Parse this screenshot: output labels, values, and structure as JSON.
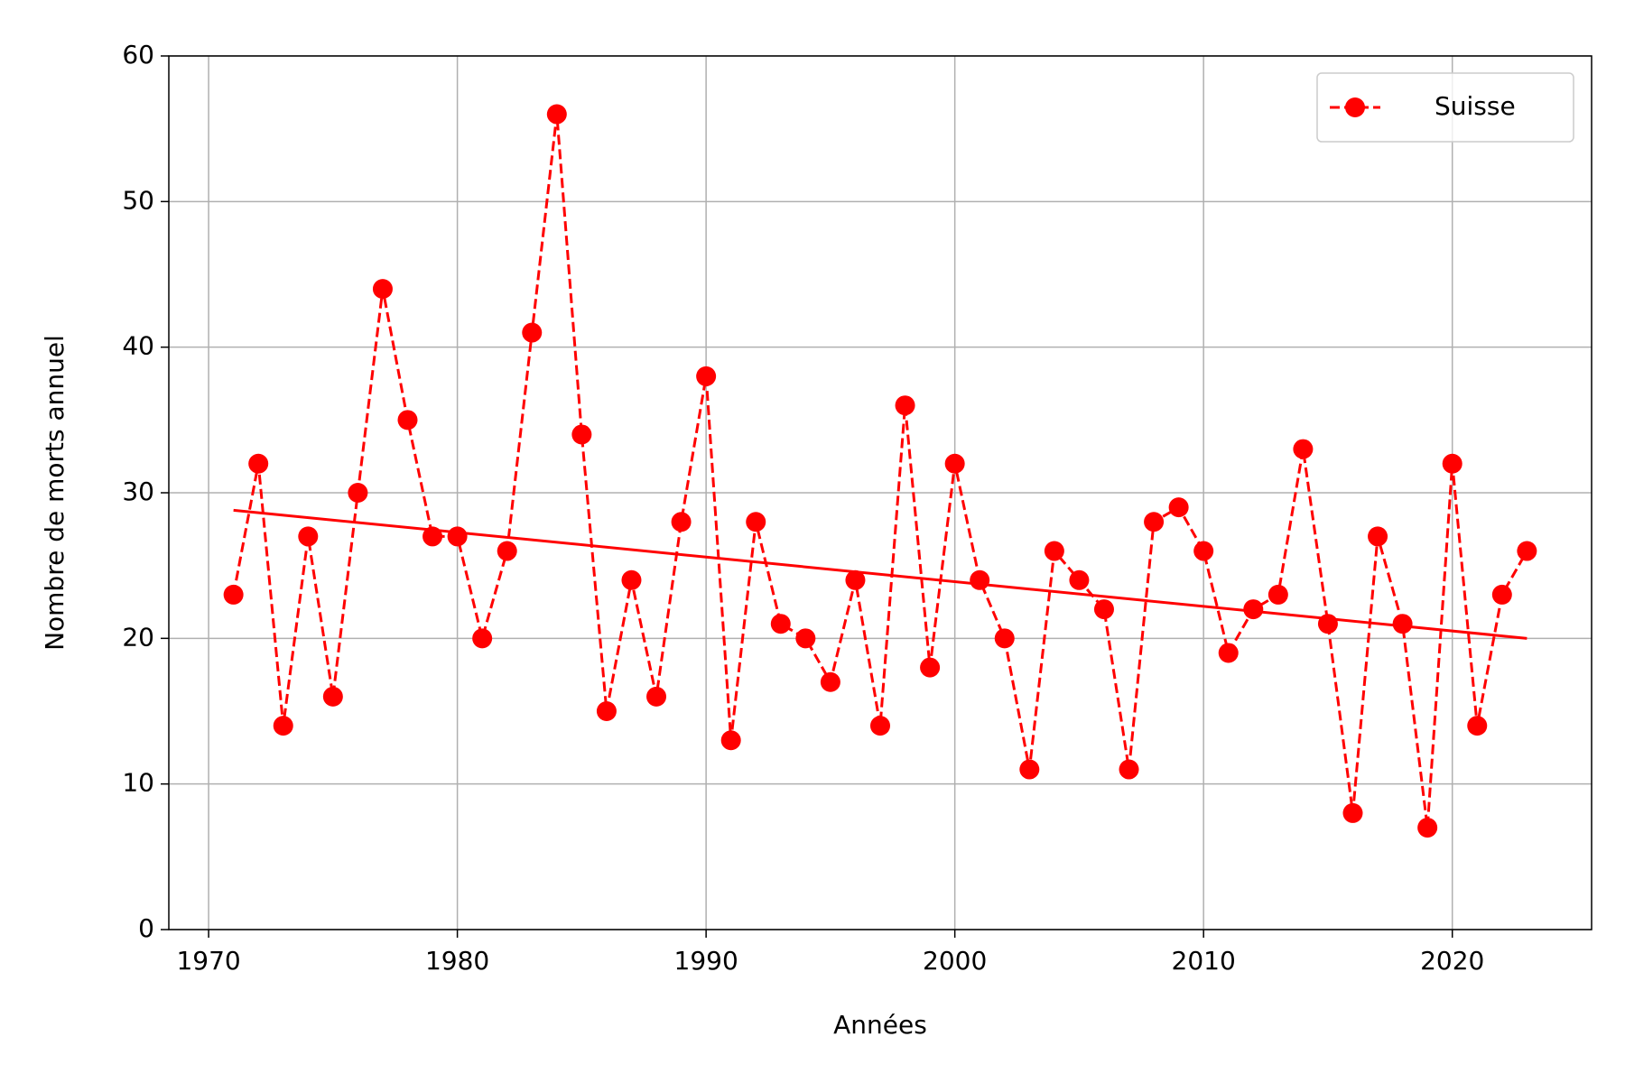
{
  "chart_data": {
    "type": "line",
    "x_label": "Années",
    "y_label": "Nombre de morts annuel",
    "x": [
      1971,
      1972,
      1973,
      1974,
      1975,
      1976,
      1977,
      1978,
      1979,
      1980,
      1981,
      1982,
      1983,
      1984,
      1985,
      1986,
      1987,
      1988,
      1989,
      1990,
      1991,
      1992,
      1993,
      1994,
      1995,
      1996,
      1997,
      1998,
      1999,
      2000,
      2001,
      2002,
      2003,
      2004,
      2005,
      2006,
      2007,
      2008,
      2009,
      2010,
      2011,
      2012,
      2013,
      2014,
      2015,
      2016,
      2017,
      2018,
      2019,
      2020,
      2021,
      2022,
      2023
    ],
    "series": [
      {
        "name": "Suisse",
        "color": "#ff0000",
        "values": [
          23,
          32,
          14,
          27,
          16,
          30,
          44,
          35,
          27,
          27,
          20,
          26,
          41,
          56,
          34,
          15,
          24,
          16,
          28,
          38,
          13,
          28,
          21,
          20,
          17,
          24,
          14,
          36,
          18,
          32,
          24,
          20,
          11,
          26,
          24,
          22,
          11,
          28,
          29,
          26,
          19,
          22,
          23,
          33,
          21,
          8,
          27,
          21,
          7,
          32,
          14,
          23,
          26
        ]
      }
    ],
    "trend": {
      "color": "#ff0000",
      "x": [
        1971,
        2023
      ],
      "values": [
        28.8,
        20.0
      ]
    },
    "xlim": [
      1968.4,
      2025.6
    ],
    "xticks": [
      1970,
      1980,
      1990,
      2000,
      2010,
      2020
    ],
    "ylim": [
      0,
      60
    ],
    "yticks": [
      0,
      10,
      20,
      30,
      40,
      50,
      60
    ],
    "grid": true,
    "legend": "upper right"
  }
}
